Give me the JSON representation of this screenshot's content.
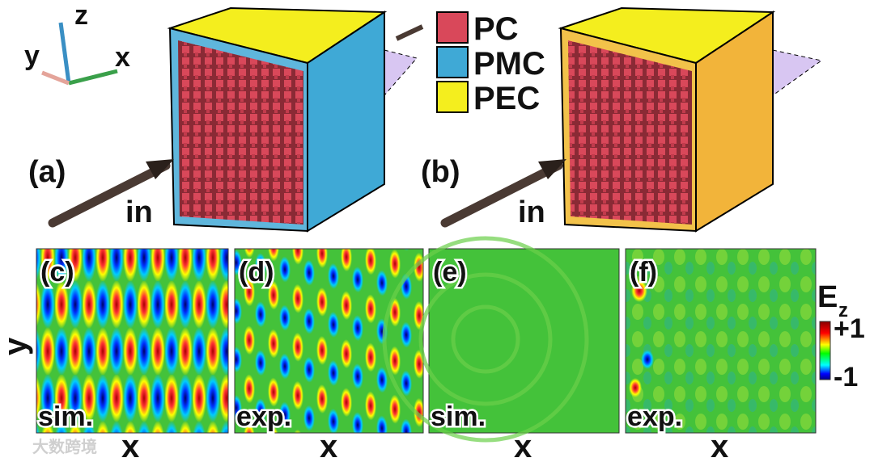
{
  "axes_triad": {
    "z": "z",
    "y": "y",
    "x": "x"
  },
  "legend": [
    {
      "label": "PC",
      "color": "#d9485a"
    },
    {
      "label": "PMC",
      "color": "#3fa9d6"
    },
    {
      "label": "PEC",
      "color": "#f4ee1e"
    }
  ],
  "panels_top": [
    {
      "label": "(a)",
      "input": "in"
    },
    {
      "label": "(b)",
      "input": "in"
    }
  ],
  "field_panels": [
    {
      "label": "(c)",
      "kind": "sim."
    },
    {
      "label": "(d)",
      "kind": "exp."
    },
    {
      "label": "(e)",
      "kind": "sim."
    },
    {
      "label": "(f)",
      "kind": "exp."
    }
  ],
  "axis_labels": {
    "x": "x",
    "y": "y"
  },
  "colorbar": {
    "title": "E",
    "subscript": "z",
    "max": "+1",
    "min": "-1"
  },
  "watermark": "大数跨境"
}
